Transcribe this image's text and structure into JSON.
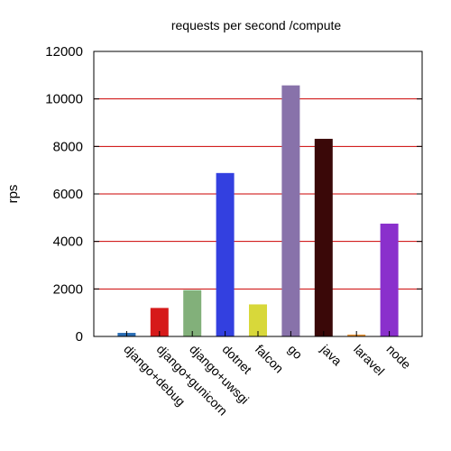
{
  "chart_data": {
    "type": "bar",
    "title": "requests per second /compute",
    "xlabel": "",
    "ylabel": "rps",
    "ylim": [
      0,
      12000
    ],
    "yticks": [
      0,
      2000,
      4000,
      6000,
      8000,
      10000,
      12000
    ],
    "ytick_labels": [
      "0",
      "2000",
      "4000",
      "6000",
      "8000",
      "10000",
      "12000"
    ],
    "grid": "horizontal",
    "grid_color": "#cc0000",
    "categories": [
      "django+debug",
      "django+gunicorn",
      "django+uwsgi",
      "dotnet",
      "falcon",
      "go",
      "java",
      "laravel",
      "node"
    ],
    "values": [
      150,
      1200,
      1950,
      6880,
      1350,
      10570,
      8320,
      80,
      4750
    ],
    "colors": [
      "#2a6db5",
      "#d61a1a",
      "#82b07a",
      "#3340e0",
      "#d8d83a",
      "#8872aa",
      "#3a0808",
      "#e8963a",
      "#8a30cc"
    ]
  }
}
